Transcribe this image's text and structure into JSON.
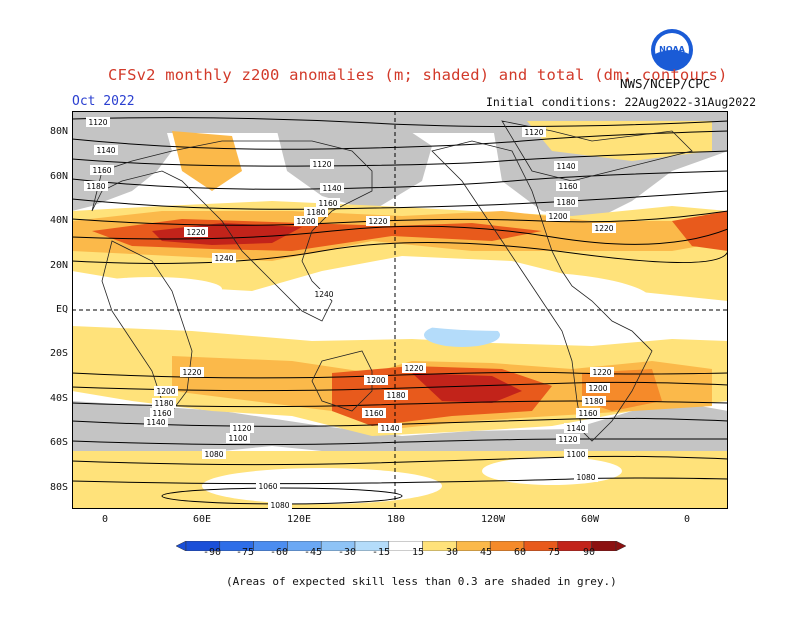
{
  "header": {
    "title": "CFSv2 monthly z200 anomalies (m; shaded) and total (dm; contours)",
    "month": "Oct 2022",
    "initial_conditions": "Initial conditions: 22Aug2022-31Aug2022",
    "agency": "NWS/NCEP/CPC",
    "logo_text": "NOAA"
  },
  "axes": {
    "lat_labels": [
      "80N",
      "60N",
      "40N",
      "20N",
      "EQ",
      "20S",
      "40S",
      "60S",
      "80S"
    ],
    "lon_labels": [
      "0",
      "60E",
      "120E",
      "180",
      "120W",
      "60W",
      "0"
    ]
  },
  "contour_labels": [
    "1120",
    "1140",
    "1160",
    "1180",
    "1200",
    "1220",
    "1240",
    "1100",
    "1080",
    "1060"
  ],
  "colorbar": {
    "labels": [
      "-90",
      "-75",
      "-60",
      "-45",
      "-30",
      "-15",
      "15",
      "30",
      "45",
      "60",
      "75",
      "90"
    ],
    "colors": [
      "#1a4fd8",
      "#2e6ee8",
      "#4c8df0",
      "#6ba8f4",
      "#8ec3f6",
      "#b4dcfa",
      "#ffffff",
      "#ffe27a",
      "#fbb94a",
      "#f58a2a",
      "#e85a1c",
      "#c2231a",
      "#8c1010"
    ]
  },
  "footnote": "(Areas of expected skill less than 0.3 are shaded in grey.)"
}
